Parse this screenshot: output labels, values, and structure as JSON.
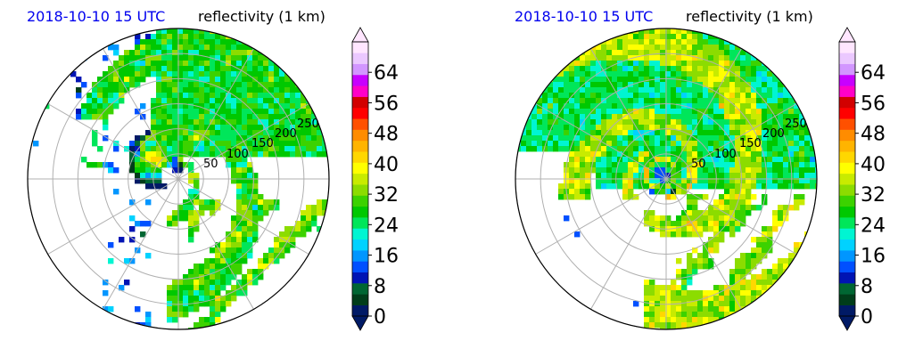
{
  "chart_data": [
    {
      "type": "heatmap",
      "projection": "polar radar PPI",
      "time_label": "2018-10-10 15 UTC",
      "field_label": "reflectivity (1 km)",
      "ring_labels": [
        "50",
        "100",
        "150",
        "200",
        "250"
      ],
      "range_rings": [
        50,
        100,
        150,
        200,
        250,
        300
      ],
      "radial_spokes_deg": [
        0,
        30,
        60,
        90,
        120,
        150,
        180,
        210,
        240,
        270,
        300,
        330
      ],
      "time_color": "#0000ee",
      "data_description": "Hurricane radar reflectivity: eye just west of radar center, rainbands spiraling from north-west toward south-east",
      "colorbar": {
        "ticks": [
          "0",
          "8",
          "16",
          "24",
          "32",
          "40",
          "48",
          "56",
          "64"
        ],
        "range": [
          0,
          72
        ],
        "extend": "both"
      }
    },
    {
      "type": "heatmap",
      "projection": "polar radar PPI",
      "time_label": "2018-10-10 15 UTC",
      "field_label": "reflectivity (1 km)",
      "ring_labels": [
        "50",
        "100",
        "150",
        "200",
        "250"
      ],
      "range_rings": [
        50,
        100,
        150,
        200,
        250,
        300
      ],
      "radial_spokes_deg": [
        0,
        30,
        60,
        90,
        120,
        150,
        180,
        210,
        240,
        270,
        300,
        330
      ],
      "time_color": "#0000ee",
      "data_description": "Simulated reflectivity: closed eyewall near center, broad rain shield north and east, bands to south-east",
      "colorbar": {
        "ticks": [
          "0",
          "8",
          "16",
          "24",
          "32",
          "40",
          "48",
          "56",
          "64"
        ],
        "range": [
          0,
          72
        ],
        "extend": "both"
      }
    }
  ],
  "palette": [
    "#001a66",
    "#003d1a",
    "#006633",
    "#0014b4",
    "#0050ff",
    "#0096ff",
    "#00d2ff",
    "#00f5d2",
    "#00e65a",
    "#00c800",
    "#3cd200",
    "#8cdc00",
    "#c8eb00",
    "#ffff00",
    "#ffd700",
    "#ffb400",
    "#ff8c00",
    "#ff5000",
    "#ff0000",
    "#d20000",
    "#ff00c8",
    "#c800ff",
    "#d296ff",
    "#ebc8ff",
    "#ffe6ff"
  ]
}
